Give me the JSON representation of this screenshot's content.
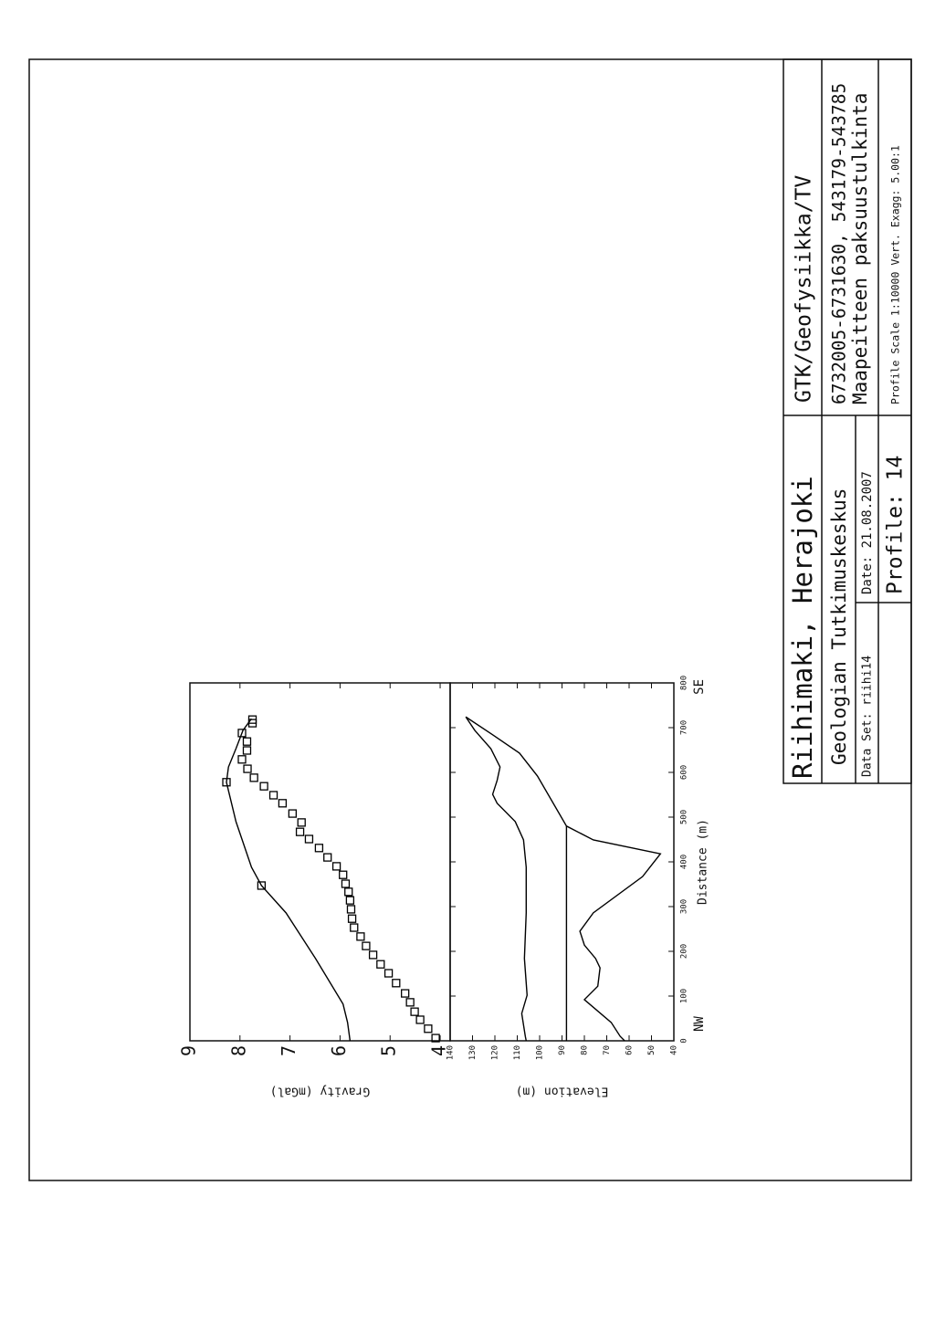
{
  "chart_data": [
    {
      "type": "line",
      "y_label": "Gravity (mGal)",
      "xlim": [
        0,
        800
      ],
      "ylim": [
        3.8,
        9
      ],
      "yticks": [
        4,
        5,
        6,
        7,
        8,
        9
      ],
      "series": [
        {
          "color": "#000000",
          "marker": "square",
          "x": [
            6,
            27,
            47,
            65,
            86,
            106,
            129,
            151,
            171,
            192,
            212,
            233,
            253,
            273,
            294,
            314,
            333,
            351,
            371,
            390,
            410,
            431,
            451,
            467,
            488,
            508,
            531,
            549,
            569,
            588,
            608,
            629,
            649,
            669,
            688,
            710,
            718,
            347,
            578
          ],
          "values": [
            4.09,
            4.24,
            4.4,
            4.51,
            4.6,
            4.7,
            4.88,
            5.03,
            5.19,
            5.34,
            5.48,
            5.59,
            5.72,
            5.76,
            5.78,
            5.8,
            5.83,
            5.89,
            5.94,
            6.07,
            6.25,
            6.42,
            6.62,
            6.8,
            6.77,
            6.95,
            7.15,
            7.33,
            7.52,
            7.72,
            7.85,
            7.96,
            7.86,
            7.86,
            7.96,
            7.75,
            7.75,
            7.57,
            8.27
          ]
        },
        {
          "color": "#000000",
          "x": [
            0,
            41,
            82,
            184,
            286,
            347,
            388,
            490,
            578,
            612,
            653,
            694,
            720
          ],
          "values": [
            5.8,
            5.85,
            5.94,
            6.49,
            7.08,
            7.57,
            7.77,
            8.08,
            8.27,
            8.23,
            8.08,
            7.94,
            7.77
          ]
        }
      ]
    },
    {
      "type": "line",
      "y_label": "Elevation (m)",
      "x_label": "Distance (m)",
      "x_end_labels": [
        "NW",
        "SE"
      ],
      "xlim": [
        0,
        800
      ],
      "ylim": [
        40,
        140
      ],
      "xticks": [
        0,
        100,
        200,
        300,
        400,
        500,
        600,
        700,
        800
      ],
      "yticks": [
        40,
        50,
        60,
        70,
        80,
        90,
        100,
        110,
        120,
        130,
        140
      ],
      "series": [
        {
          "color": "#000000",
          "x": [
            0,
            10,
            61,
            102,
            184,
            286,
            388,
            449,
            490,
            531,
            551,
            582,
            612,
            653,
            694,
            724
          ],
          "values": [
            106,
            106.4,
            108,
            105.6,
            106.8,
            106,
            106,
            107.2,
            110.9,
            119,
            121,
            119,
            117.7,
            121.8,
            129,
            133
          ]
        },
        {
          "color": "#000000",
          "x": [
            0,
            10,
            41,
            92,
            122,
            163,
            184,
            214,
            245,
            286,
            367,
            418,
            449,
            480,
            592,
            643,
            684,
            724
          ],
          "values": [
            62,
            64,
            68,
            80,
            74,
            73,
            75,
            80,
            82,
            76,
            54,
            46,
            76,
            88,
            101,
            109,
            121,
            133
          ]
        },
        {
          "color": "#000000",
          "x": [
            0,
            480
          ],
          "values": [
            88,
            88
          ]
        }
      ]
    }
  ],
  "title_block": {
    "title": "Riihimaki, Herajoki",
    "department": "GTK/Geofysiikka/TV",
    "organization": "Geologian Tutkimuskeskus",
    "coordinates": "6732005-6731630, 543179-543785",
    "data_set": "Data Set: riihi14",
    "date": "Date: 21.08.2007",
    "description": "Maapeitteen paksuustulkinta",
    "profile": "Profile: 14",
    "scale": "Profile Scale 1:10000 Vert. Exagg: 5.00:1"
  }
}
